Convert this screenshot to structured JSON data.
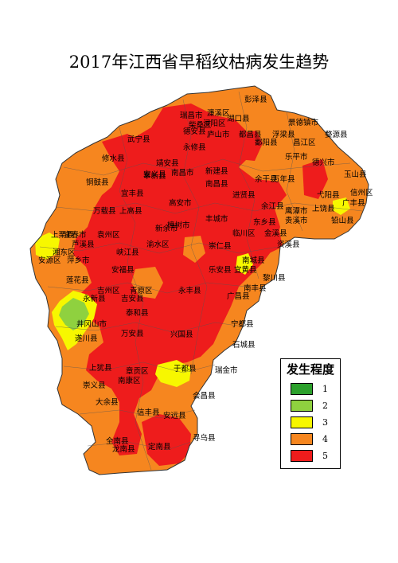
{
  "title": "2017年江西省早稻纹枯病发生趋势",
  "colors": {
    "level1": "#2ca02c",
    "level2": "#8fd13f",
    "level3": "#f7f700",
    "level4": "#f6861f",
    "level5": "#ee1c1c"
  },
  "legend": {
    "title": "发生程度",
    "items": [
      {
        "level": "1",
        "color": "#2ca02c"
      },
      {
        "level": "2",
        "color": "#8fd13f"
      },
      {
        "level": "3",
        "color": "#f7f700"
      },
      {
        "level": "4",
        "color": "#f6861f"
      },
      {
        "level": "5",
        "color": "#ee1c1c"
      }
    ]
  },
  "labels": [
    "彭泽县",
    "瑞昌市",
    "濂溪区",
    "湖口县",
    "浔阳区",
    "柴桑区",
    "景德镇市",
    "武宁县",
    "德安县",
    "庐山市",
    "都昌县",
    "永修县",
    "鄱阳县",
    "浮梁县",
    "昌江区",
    "婺源县",
    "修水县",
    "乐平市",
    "靖安县",
    "安义县",
    "德兴市",
    "玉山县",
    "奉新县",
    "南昌市",
    "新建县",
    "余干县",
    "万年县",
    "铜鼓县",
    "南昌县",
    "信州区",
    "宜丰县",
    "进贤县",
    "弋阳县",
    "广丰县",
    "高安市",
    "余江县",
    "上饶县",
    "万载县",
    "上高县",
    "丰城市",
    "贵溪市",
    "铅山县",
    "上栗县",
    "宜春市",
    "袁州区",
    "东乡县",
    "鹰潭市",
    "芦溪县",
    "临川区",
    "金溪县",
    "湘东区",
    "安源区",
    "萍乡市",
    "新余市",
    "渝水区",
    "樟树市",
    "崇仁县",
    "资溪县",
    "峡江县",
    "南城县",
    "安福县",
    "乐安县",
    "宜黄县",
    "莲花县",
    "南丰县",
    "黎川县",
    "吉州区",
    "青原区",
    "吉安县",
    "永丰县",
    "永新县",
    "广昌县",
    "井冈山市",
    "泰和县",
    "宁都县",
    "遂川县",
    "万安县",
    "兴国县",
    "石城县",
    "上犹县",
    "章贡区",
    "南康区",
    "于都县",
    "瑞金市",
    "崇义县",
    "会昌县",
    "大余县",
    "信丰县",
    "安远县",
    "全南县",
    "寻乌县",
    "龙南县",
    "定南县"
  ]
}
